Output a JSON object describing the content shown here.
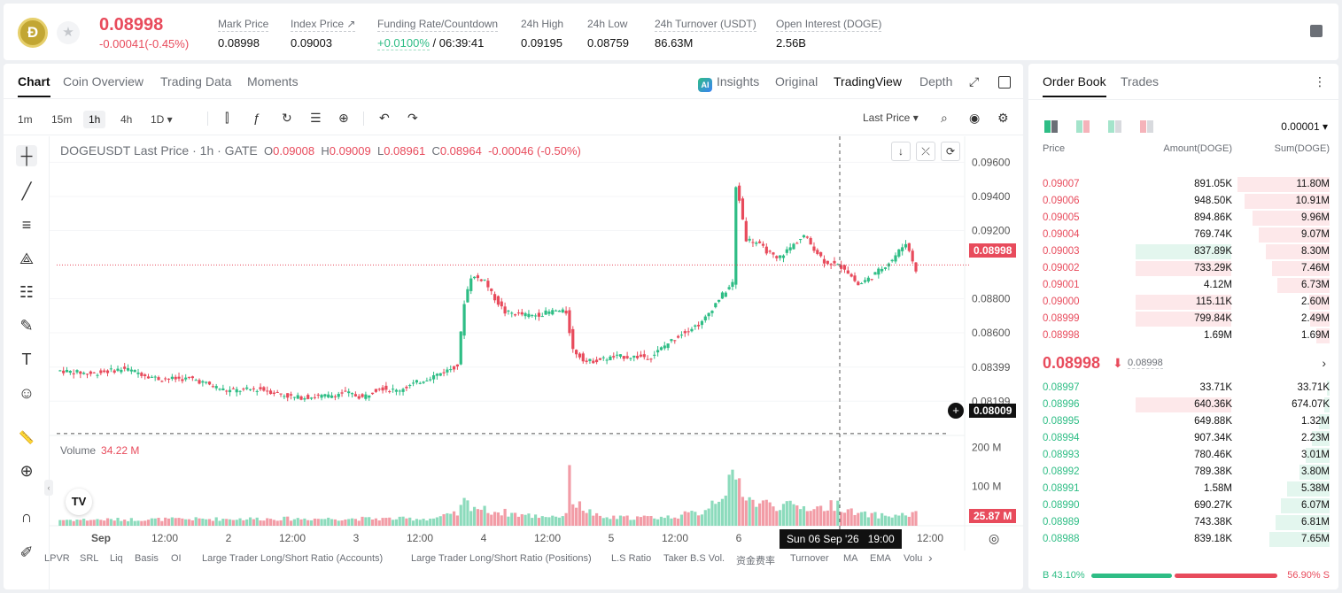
{
  "header": {
    "coin_glyph": "Ð",
    "star": "★",
    "last_price": "0.08998",
    "change": "-0.00041(-0.45%)",
    "stats": [
      {
        "label": "Mark Price",
        "value": "0.08998"
      },
      {
        "label": "Index Price ↗",
        "value": "0.09003"
      },
      {
        "label": "Funding Rate/Countdown",
        "value_green": "+0.0100%",
        "value_rest": " / 06:39:41"
      },
      {
        "label": "24h High",
        "value": "0.09195"
      },
      {
        "label": "24h Low",
        "value": "0.08759"
      },
      {
        "label": "24h Turnover (USDT)",
        "value": "86.63M"
      },
      {
        "label": "Open Interest (DOGE)",
        "value": "2.56B"
      }
    ]
  },
  "chart_tabs": [
    "Chart",
    "Coin Overview",
    "Trading Data",
    "Moments"
  ],
  "view_options": {
    "ai": "AI",
    "insights": "Insights",
    "original": "Original",
    "tradingview": "TradingView",
    "depth": "Depth",
    "expand": "⤢"
  },
  "intervals": [
    "1m",
    "15m",
    "1h",
    "4h",
    "1D ▾"
  ],
  "toolbar_icons": {
    "candles": "⫿",
    "indicators": "ƒ",
    "replay": "↻",
    "template": "☰",
    "alert": "⊕",
    "undo": "↶",
    "redo": "↷",
    "search": "⌕",
    "camera": "◉",
    "settings": "⚙"
  },
  "last_price_selector": "Last Price ▾",
  "draw_tools": {
    "crosshair": "┼",
    "trendline": "╱",
    "channel": "≡",
    "pattern": "⟁",
    "fib": "☷",
    "brush": "✎",
    "text": "T",
    "emoji": "☺",
    "ruler": "📏",
    "zoom": "⊕",
    "magnet": "∩",
    "pencil": "✐"
  },
  "legend": {
    "symbol": "DOGEUSDT Last Price · 1h · GATE",
    "o_key": "O",
    "o": "0.09008",
    "h_key": "H",
    "h": "0.09009",
    "l_key": "L",
    "l": "0.08961",
    "c_key": "C",
    "c": "0.08964",
    "chg": "-0.00046 (-0.50%)"
  },
  "chart_controls": {
    "down": "↓",
    "collapse": "⤫",
    "fit": "⟳"
  },
  "volume_legend": {
    "label": "Volume",
    "value": "34.22 M"
  },
  "tv_logo": "TV",
  "collapse_glyph": "‹",
  "price_tags": {
    "current": "0.08998",
    "crosshair": "0.08009",
    "volume": "25.87 M"
  },
  "plus_mark": "+",
  "gear_bottom": "◎",
  "time_tag": {
    "date": "Sun 06 Sep '26",
    "time": "19:00"
  },
  "chart_data": {
    "type": "candlestick",
    "title": "DOGEUSDT Last Price · 1h · GATE",
    "y_ticks": [
      "0.09600",
      "0.09400",
      "0.09200",
      "0.08800",
      "0.08600",
      "0.08399",
      "0.08199"
    ],
    "y_tick_values": [
      0.096,
      0.094,
      0.092,
      0.088,
      0.086,
      0.08399,
      0.08199
    ],
    "ylim": [
      0.0805,
      0.0968
    ],
    "volume_ticks": [
      "200 M",
      "100 M"
    ],
    "volume_tick_values": [
      200,
      100
    ],
    "x_ticks": [
      "Sep",
      "12:00",
      "2",
      "12:00",
      "3",
      "12:00",
      "4",
      "12:00",
      "5",
      "12:00",
      "6",
      "12:00",
      "12:00"
    ],
    "current_price": 0.08998,
    "crosshair_price": 0.08009,
    "series": [
      {
        "name": "Price",
        "anchors": [
          [
            0,
            0.0838
          ],
          [
            10,
            0.0836
          ],
          [
            20,
            0.0839
          ],
          [
            30,
            0.0833
          ],
          [
            40,
            0.0833
          ],
          [
            50,
            0.0826
          ],
          [
            60,
            0.0827
          ],
          [
            70,
            0.0822
          ],
          [
            80,
            0.0823
          ],
          [
            85,
            0.0825
          ],
          [
            90,
            0.0822
          ],
          [
            95,
            0.0828
          ],
          [
            100,
            0.0826
          ],
          [
            110,
            0.0834
          ],
          [
            115,
            0.0838
          ],
          [
            118,
            0.0841
          ],
          [
            120,
            0.0878
          ],
          [
            122,
            0.0893
          ],
          [
            126,
            0.0891
          ],
          [
            128,
            0.0883
          ],
          [
            132,
            0.0872
          ],
          [
            140,
            0.087
          ],
          [
            147,
            0.0873
          ],
          [
            150,
            0.0872
          ],
          [
            152,
            0.085
          ],
          [
            156,
            0.0843
          ],
          [
            165,
            0.0846
          ],
          [
            175,
            0.0846
          ],
          [
            180,
            0.0854
          ],
          [
            185,
            0.0861
          ],
          [
            190,
            0.0866
          ],
          [
            195,
            0.088
          ],
          [
            199,
            0.0889
          ],
          [
            200,
            0.0945
          ],
          [
            201,
            0.0938
          ],
          [
            203,
            0.0915
          ],
          [
            206,
            0.0913
          ],
          [
            212,
            0.0903
          ],
          [
            220,
            0.0917
          ],
          [
            226,
            0.0902
          ],
          [
            232,
            0.0898
          ],
          [
            236,
            0.0888
          ],
          [
            240,
            0.0893
          ],
          [
            246,
            0.0903
          ],
          [
            250,
            0.0913
          ],
          [
            253,
            0.0897
          ]
        ]
      }
    ],
    "volume": [
      {
        "name": "Volume",
        "anchors": [
          [
            0,
            15
          ],
          [
            60,
            18
          ],
          [
            110,
            18
          ],
          [
            118,
            30
          ],
          [
            120,
            60
          ],
          [
            126,
            40
          ],
          [
            140,
            25
          ],
          [
            150,
            25
          ],
          [
            151,
            210
          ],
          [
            152,
            60
          ],
          [
            160,
            20
          ],
          [
            180,
            22
          ],
          [
            190,
            35
          ],
          [
            200,
            120
          ],
          [
            205,
            60
          ],
          [
            215,
            50
          ],
          [
            225,
            45
          ],
          [
            230,
            55
          ],
          [
            235,
            30
          ],
          [
            245,
            25
          ],
          [
            253,
            30
          ]
        ]
      }
    ]
  },
  "indicators": [
    "LPVR",
    "SRL",
    "Liq",
    "Basis",
    "OI",
    "Large Trader Long/Short Ratio (Accounts)",
    "Large Trader Long/Short Ratio (Positions)",
    "L.S Ratio",
    "Taker B.S Vol.",
    "资金费率",
    "Turnover",
    "MA",
    "EMA",
    "Volu",
    "›"
  ],
  "orderbook": {
    "tabs": [
      "Order Book",
      "Trades"
    ],
    "kebab": "⋮",
    "precision": "0.00001 ▾",
    "headers": {
      "price": "Price",
      "amount": "Amount(DOGE)",
      "sum": "Sum(DOGE)"
    },
    "asks": [
      {
        "price": "0.09007",
        "amount": "891.05K",
        "sum": "11.80M",
        "sum_frac": 0.99,
        "amt_frac": 0
      },
      {
        "price": "0.09006",
        "amount": "948.50K",
        "sum": "10.91M",
        "sum_frac": 0.91,
        "amt_frac": 0
      },
      {
        "price": "0.09005",
        "amount": "894.86K",
        "sum": "9.96M",
        "sum_frac": 0.83,
        "amt_frac": 0
      },
      {
        "price": "0.09004",
        "amount": "769.74K",
        "sum": "9.07M",
        "sum_frac": 0.76,
        "amt_frac": 0
      },
      {
        "price": "0.09003",
        "amount": "837.89K",
        "sum": "8.30M",
        "sum_frac": 0.69,
        "amt_frac": 0.55,
        "amt_green": true
      },
      {
        "price": "0.09002",
        "amount": "733.29K",
        "sum": "7.46M",
        "sum_frac": 0.62,
        "amt_frac": 0.55
      },
      {
        "price": "0.09001",
        "amount": "4.12M",
        "sum": "6.73M",
        "sum_frac": 0.56,
        "amt_frac": 0
      },
      {
        "price": "0.09000",
        "amount": "115.11K",
        "sum": "2.60M",
        "sum_frac": 0.22,
        "amt_frac": 0.55
      },
      {
        "price": "0.08999",
        "amount": "799.84K",
        "sum": "2.49M",
        "sum_frac": 0.21,
        "amt_frac": 0.55
      },
      {
        "price": "0.08998",
        "amount": "1.69M",
        "sum": "1.69M",
        "sum_frac": 0.14,
        "amt_frac": 0
      }
    ],
    "mid": {
      "price": "0.08998",
      "arrow": "⬇",
      "mark": "0.08998",
      "chevron": "›"
    },
    "bids": [
      {
        "price": "0.08997",
        "amount": "33.71K",
        "sum": "33.71K",
        "sum_frac": 0.03,
        "amt_frac": 0
      },
      {
        "price": "0.08996",
        "amount": "640.36K",
        "sum": "674.07K",
        "sum_frac": 0.06,
        "amt_frac": 0.55,
        "amt_red": true
      },
      {
        "price": "0.08995",
        "amount": "649.88K",
        "sum": "1.32M",
        "sum_frac": 0.11,
        "amt_frac": 0
      },
      {
        "price": "0.08994",
        "amount": "907.34K",
        "sum": "2.23M",
        "sum_frac": 0.19,
        "amt_frac": 0
      },
      {
        "price": "0.08993",
        "amount": "780.46K",
        "sum": "3.01M",
        "sum_frac": 0.26,
        "amt_frac": 0
      },
      {
        "price": "0.08992",
        "amount": "789.38K",
        "sum": "3.80M",
        "sum_frac": 0.32,
        "amt_frac": 0
      },
      {
        "price": "0.08991",
        "amount": "1.58M",
        "sum": "5.38M",
        "sum_frac": 0.46,
        "amt_frac": 0
      },
      {
        "price": "0.08990",
        "amount": "690.27K",
        "sum": "6.07M",
        "sum_frac": 0.52,
        "amt_frac": 0
      },
      {
        "price": "0.08989",
        "amount": "743.38K",
        "sum": "6.81M",
        "sum_frac": 0.58,
        "amt_frac": 0
      },
      {
        "price": "0.08988",
        "amount": "839.18K",
        "sum": "7.65M",
        "sum_frac": 0.65,
        "amt_frac": 0
      }
    ],
    "ratio": {
      "buy": "B 43.10%",
      "sell": "56.90% S",
      "buy_frac": 0.431
    }
  },
  "colors": {
    "up": "#2ebd85",
    "down": "#e84b5c"
  }
}
